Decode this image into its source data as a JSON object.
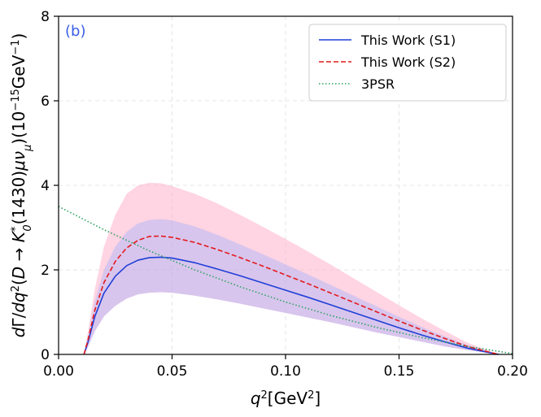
{
  "chart_data": {
    "type": "line",
    "panel_label": "(b)",
    "xlabel": "q²[GeV²]",
    "ylabel": "dΓ/dq²(D → K₀*(1430)μν_μ)(10⁻¹⁵GeV⁻¹)",
    "xlim": [
      0.0,
      0.2
    ],
    "ylim": [
      0,
      8
    ],
    "x_ticks": [
      0.0,
      0.05,
      0.1,
      0.15,
      0.2
    ],
    "x_tick_labels": [
      "0.00",
      "0.05",
      "0.10",
      "0.15",
      "0.20"
    ],
    "y_ticks": [
      0,
      2,
      4,
      6,
      8
    ],
    "y_tick_labels": [
      "0",
      "2",
      "4",
      "6",
      "8"
    ],
    "grid": true,
    "legend_position": "top-right",
    "x": [
      0.0112,
      0.013,
      0.016,
      0.02,
      0.025,
      0.03,
      0.035,
      0.04,
      0.045,
      0.05,
      0.06,
      0.07,
      0.08,
      0.09,
      0.1,
      0.11,
      0.12,
      0.13,
      0.14,
      0.15,
      0.16,
      0.17,
      0.18,
      0.19,
      0.194
    ],
    "series": [
      {
        "name": "This Work (S1)",
        "color": "#1f3fd8",
        "style": "solid",
        "values": [
          0,
          0.3,
          0.9,
          1.45,
          1.85,
          2.1,
          2.23,
          2.29,
          2.3,
          2.28,
          2.17,
          2.02,
          1.86,
          1.69,
          1.52,
          1.35,
          1.17,
          0.99,
          0.81,
          0.63,
          0.46,
          0.3,
          0.15,
          0.04,
          0
        ],
        "band_lower": [
          0,
          0.18,
          0.55,
          0.9,
          1.15,
          1.32,
          1.42,
          1.46,
          1.47,
          1.46,
          1.39,
          1.3,
          1.2,
          1.09,
          0.98,
          0.87,
          0.76,
          0.64,
          0.52,
          0.41,
          0.3,
          0.19,
          0.1,
          0.03,
          0
        ],
        "band_upper": [
          0,
          0.42,
          1.25,
          2.0,
          2.55,
          2.9,
          3.1,
          3.18,
          3.2,
          3.17,
          3.03,
          2.83,
          2.6,
          2.37,
          2.13,
          1.89,
          1.64,
          1.39,
          1.14,
          0.89,
          0.65,
          0.43,
          0.22,
          0.06,
          0
        ],
        "band_color": "#8fa8ff"
      },
      {
        "name": "This Work (S2)",
        "color": "#e31a1c",
        "style": "dashed",
        "values": [
          0,
          0.35,
          1.05,
          1.7,
          2.2,
          2.52,
          2.7,
          2.79,
          2.8,
          2.77,
          2.65,
          2.48,
          2.29,
          2.09,
          1.88,
          1.67,
          1.45,
          1.23,
          1.01,
          0.79,
          0.58,
          0.38,
          0.19,
          0.05,
          0
        ],
        "band_lower": [
          0,
          0.18,
          0.55,
          0.9,
          1.15,
          1.32,
          1.42,
          1.46,
          1.47,
          1.46,
          1.39,
          1.3,
          1.2,
          1.09,
          0.98,
          0.87,
          0.76,
          0.64,
          0.52,
          0.41,
          0.3,
          0.19,
          0.1,
          0.03,
          0
        ],
        "band_upper": [
          0,
          0.55,
          1.55,
          2.55,
          3.3,
          3.8,
          4.0,
          4.06,
          4.05,
          3.98,
          3.8,
          3.57,
          3.3,
          3.02,
          2.73,
          2.43,
          2.12,
          1.8,
          1.48,
          1.16,
          0.85,
          0.56,
          0.28,
          0.08,
          0
        ],
        "band_color": "#ffb0cc"
      },
      {
        "name": "3PSR",
        "color": "#2ca25f",
        "style": "dotted",
        "x": [
          0.0,
          0.02,
          0.04,
          0.06,
          0.08,
          0.1,
          0.12,
          0.14,
          0.16,
          0.18,
          0.2
        ],
        "values": [
          3.5,
          2.95,
          2.45,
          2.0,
          1.6,
          1.24,
          0.92,
          0.64,
          0.4,
          0.19,
          0.02
        ]
      }
    ]
  }
}
